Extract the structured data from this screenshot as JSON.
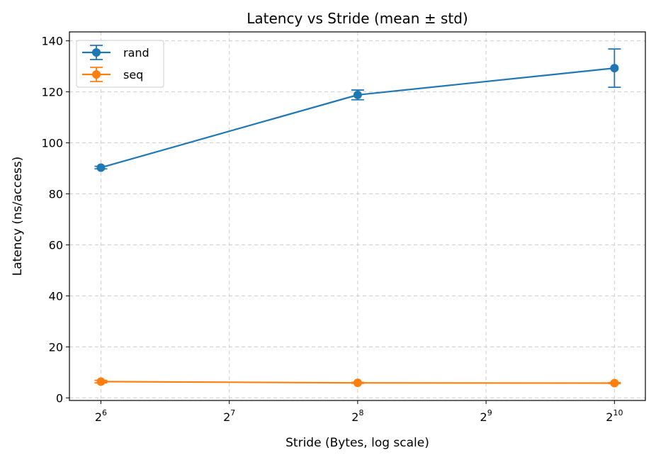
{
  "chart_data": {
    "type": "line",
    "title": "Latency vs Stride (mean ± std)",
    "xlabel": "Stride (Bytes, log scale)",
    "ylabel": "Latency (ns/access)",
    "xscale": "log2",
    "xlim": [
      54,
      1210
    ],
    "ylim": [
      -1,
      143.5
    ],
    "x": [
      64,
      256,
      1024
    ],
    "x_ticks": [
      {
        "value": 64,
        "base": "2",
        "exp": "6"
      },
      {
        "value": 128,
        "base": "2",
        "exp": "7"
      },
      {
        "value": 256,
        "base": "2",
        "exp": "8"
      },
      {
        "value": 512,
        "base": "2",
        "exp": "9"
      },
      {
        "value": 1024,
        "base": "2",
        "exp": "10"
      }
    ],
    "y_ticks": [
      0,
      20,
      40,
      60,
      80,
      100,
      120,
      140
    ],
    "grid": true,
    "error_bars": true,
    "legend_position": "top-left",
    "series": [
      {
        "name": "rand",
        "color": "#1f77b4",
        "values": [
          90.3,
          118.8,
          129.3
        ],
        "std": [
          0.5,
          1.9,
          7.5
        ]
      },
      {
        "name": "seq",
        "color": "#ff7f0e",
        "values": [
          6.4,
          5.9,
          5.8
        ],
        "std": [
          0.5,
          0.2,
          0.2
        ]
      }
    ]
  }
}
